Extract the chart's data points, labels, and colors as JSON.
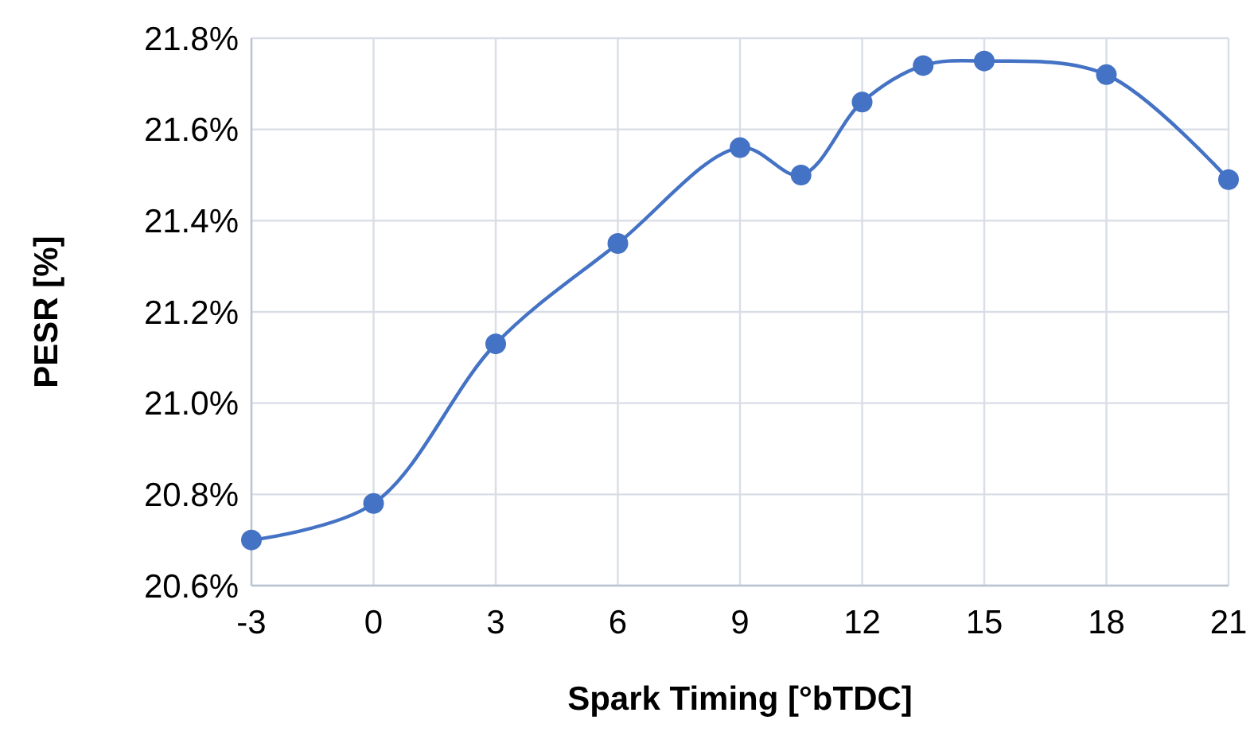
{
  "chart_data": {
    "type": "line",
    "xlabel": "Spark Timing [°bTDC]",
    "ylabel": "PESR [%]",
    "x": [
      -3,
      0,
      3,
      6,
      9,
      10.5,
      12,
      13.5,
      15,
      18,
      21
    ],
    "series": [
      {
        "color": "#4472c4",
        "values": [
          20.7,
          20.78,
          21.13,
          21.35,
          21.56,
          21.5,
          21.66,
          21.74,
          21.75,
          21.72,
          21.49
        ]
      }
    ],
    "xlim": [
      -3,
      21
    ],
    "xticks": [
      -3,
      0,
      3,
      6,
      9,
      12,
      15,
      18,
      21
    ],
    "ylim": [
      20.6,
      21.8
    ],
    "yticks": [
      {
        "value": 20.6,
        "label": "20.6%"
      },
      {
        "value": 20.8,
        "label": "20.8%"
      },
      {
        "value": 21.0,
        "label": "21.0%"
      },
      {
        "value": 21.2,
        "label": "21.2%"
      },
      {
        "value": 21.4,
        "label": "21.4%"
      },
      {
        "value": 21.6,
        "label": "21.6%"
      },
      {
        "value": 21.8,
        "label": "21.8%"
      }
    ],
    "grid": true,
    "marker": "circle",
    "line_style": "solid"
  }
}
